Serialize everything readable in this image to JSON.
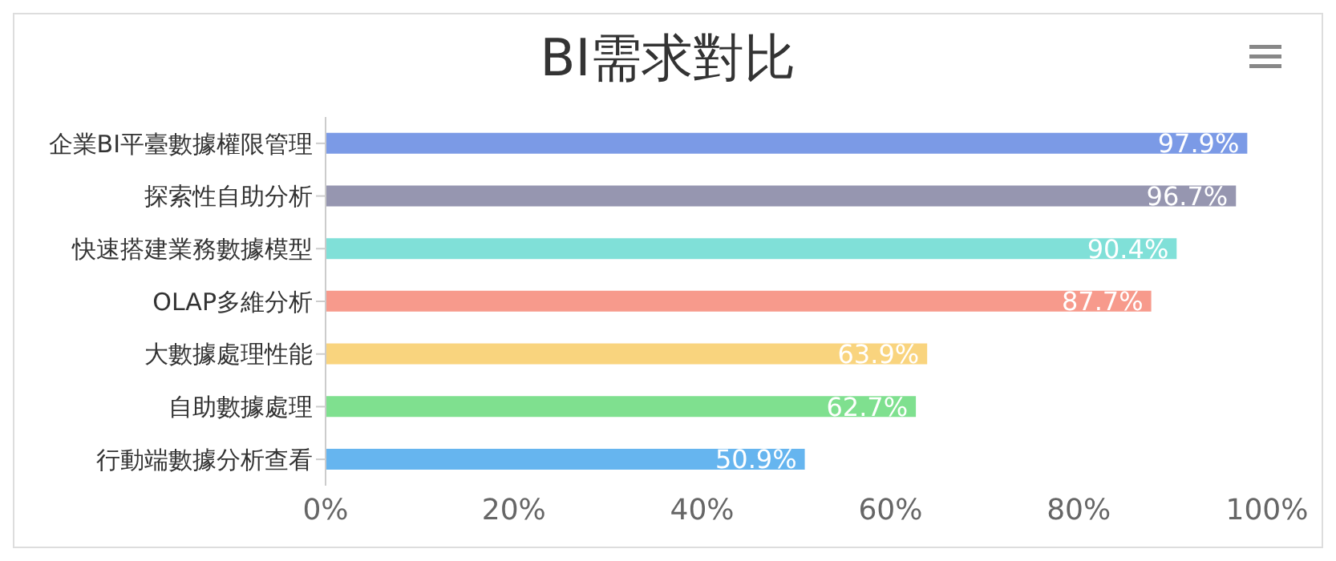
{
  "chart_data": {
    "type": "bar",
    "orientation": "horizontal",
    "title": "BI需求對比",
    "categories": [
      "企業BI平臺數據權限管理",
      "探索性自助分析",
      "快速搭建業務數據模型",
      "OLAP多維分析",
      "大數據處理性能",
      "自助數據處理",
      "行動端數據分析查看"
    ],
    "values": [
      97.9,
      96.7,
      90.4,
      87.7,
      63.9,
      62.7,
      50.9
    ],
    "value_labels": [
      "97.9%",
      "96.7%",
      "90.4%",
      "87.7%",
      "63.9%",
      "62.7%",
      "50.9%"
    ],
    "colors": [
      "#7b9ae6",
      "#9696b0",
      "#80e0d8",
      "#f79a8c",
      "#f9d47e",
      "#7fe08f",
      "#66b5ef"
    ],
    "xlim": [
      0,
      100
    ],
    "xticks": [
      {
        "value": 0,
        "label": "0%"
      },
      {
        "value": 20,
        "label": "20%"
      },
      {
        "value": 40,
        "label": "40%"
      },
      {
        "value": 60,
        "label": "60%"
      },
      {
        "value": 80,
        "label": "80%"
      },
      {
        "value": 100,
        "label": "100%"
      }
    ],
    "grid": false,
    "legend": false
  }
}
